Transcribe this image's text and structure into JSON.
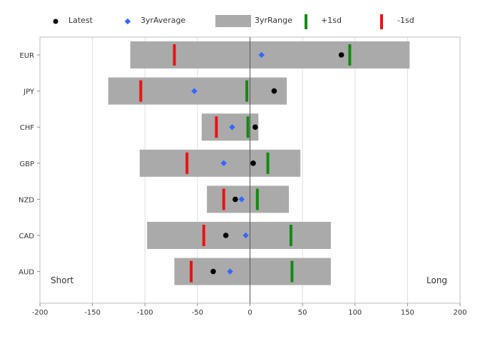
{
  "chart_data": {
    "type": "range-bar",
    "categories": [
      "EUR",
      "JPY",
      "CHF",
      "GBP",
      "NZD",
      "CAD",
      "AUD"
    ],
    "range_low": [
      -114,
      -135,
      -46,
      -105,
      -41,
      -98,
      -72
    ],
    "range_high": [
      152,
      35,
      8,
      48,
      37,
      77,
      77
    ],
    "latest": [
      87,
      23,
      5,
      3,
      -14,
      -23,
      -35
    ],
    "avg_3yr": [
      11,
      -53,
      -17,
      -25,
      -8,
      -4,
      -19
    ],
    "plus_1sd": [
      95,
      -3,
      -2,
      17,
      7,
      39,
      40
    ],
    "minus_1sd": [
      -72,
      -104,
      -32,
      -60,
      -25,
      -44,
      -56
    ],
    "xlim": [
      -200,
      200
    ],
    "xticks": [
      "-200",
      "-150",
      "-100",
      "-50",
      "0",
      "50",
      "100",
      "150",
      "200"
    ],
    "legend": [
      "Latest",
      "3yrAverage",
      "3yrRange",
      "+1sd",
      "-1sd"
    ],
    "annotations": {
      "left": "Short",
      "right": "Long"
    },
    "legend_position": "top",
    "grid": true
  },
  "colors": {
    "latest": "#000000",
    "avg": "#3366ff",
    "range": "#aaaaaa",
    "plus_sd": "#138a13",
    "minus_sd": "#ee1111"
  }
}
